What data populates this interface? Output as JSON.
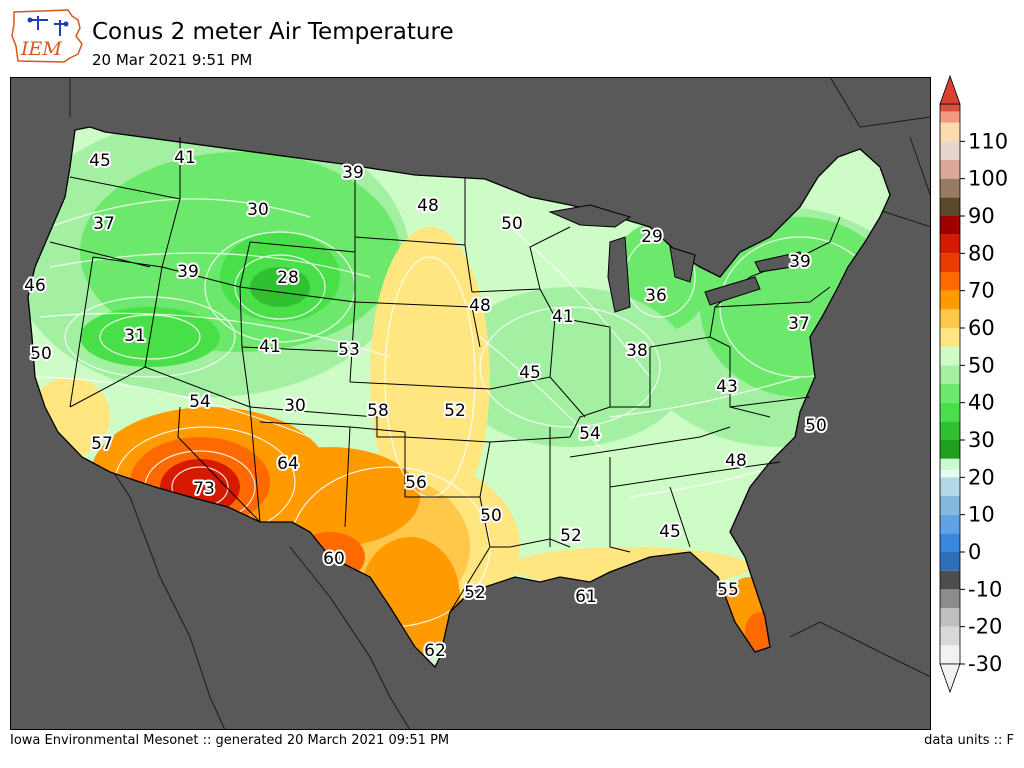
{
  "header": {
    "logo_text": "IEM",
    "title": "Conus 2 meter Air Temperature",
    "subtitle": "20 Mar 2021 9:51 PM"
  },
  "footer": {
    "left": "Iowa Environmental Mesonet :: generated 20 March 2021 09:51 PM",
    "right": "data units :: F"
  },
  "colors": {
    "background": "#595959",
    "land_palette_cool": "#1e9e1e",
    "land_palette_warm": "#e01a00"
  },
  "chart_data": {
    "type": "heatmap",
    "title": "Conus 2 meter Air Temperature",
    "subtitle": "20 Mar 2021 9:51 PM",
    "units": "F",
    "colorbar": {
      "range": [
        -30,
        120
      ],
      "tick_labels": [
        "-30",
        "-20",
        "-10",
        "0",
        "10",
        "20",
        "30",
        "40",
        "50",
        "60",
        "70",
        "80",
        "90",
        "100",
        "110"
      ],
      "ticks": [
        -30,
        -20,
        -10,
        0,
        10,
        20,
        30,
        40,
        50,
        60,
        70,
        80,
        90,
        100,
        110
      ],
      "extend": "both",
      "bins": [
        {
          "lo": -30,
          "hi": -25,
          "color": "#f2f2f2"
        },
        {
          "lo": -25,
          "hi": -20,
          "color": "#d9d9d9"
        },
        {
          "lo": -20,
          "hi": -15,
          "color": "#bfbfbf"
        },
        {
          "lo": -15,
          "hi": -10,
          "color": "#8c8c8c"
        },
        {
          "lo": -10,
          "hi": -5,
          "color": "#4d4d4d"
        },
        {
          "lo": -5,
          "hi": 0,
          "color": "#2f6eb8"
        },
        {
          "lo": 0,
          "hi": 5,
          "color": "#3a87e0"
        },
        {
          "lo": 5,
          "hi": 10,
          "color": "#5fa3e6"
        },
        {
          "lo": 10,
          "hi": 15,
          "color": "#83b9dc"
        },
        {
          "lo": 15,
          "hi": 20,
          "color": "#b3d9e6"
        },
        {
          "lo": 20,
          "hi": 22,
          "color": "#e6fbee"
        },
        {
          "lo": 22,
          "hi": 25,
          "color": "#c9fbd0"
        },
        {
          "lo": 25,
          "hi": 30,
          "color": "#1f9e1f"
        },
        {
          "lo": 30,
          "hi": 35,
          "color": "#30c030"
        },
        {
          "lo": 35,
          "hi": 40,
          "color": "#49df49"
        },
        {
          "lo": 40,
          "hi": 45,
          "color": "#6ce86c"
        },
        {
          "lo": 45,
          "hi": 50,
          "color": "#a3f0a3"
        },
        {
          "lo": 50,
          "hi": 55,
          "color": "#cefcc6"
        },
        {
          "lo": 55,
          "hi": 60,
          "color": "#ffe680"
        },
        {
          "lo": 60,
          "hi": 65,
          "color": "#ffc84a"
        },
        {
          "lo": 65,
          "hi": 70,
          "color": "#ff9a00"
        },
        {
          "lo": 70,
          "hi": 75,
          "color": "#ff6a00"
        },
        {
          "lo": 75,
          "hi": 80,
          "color": "#e93a00"
        },
        {
          "lo": 80,
          "hi": 85,
          "color": "#d61a00"
        },
        {
          "lo": 85,
          "hi": 90,
          "color": "#a00000"
        },
        {
          "lo": 90,
          "hi": 95,
          "color": "#5a4a2c"
        },
        {
          "lo": 95,
          "hi": 100,
          "color": "#9a7a62"
        },
        {
          "lo": 100,
          "hi": 105,
          "color": "#d9a89a"
        },
        {
          "lo": 105,
          "hi": 110,
          "color": "#e6d6d0"
        },
        {
          "lo": 110,
          "hi": 115,
          "color": "#fbdbb0"
        },
        {
          "lo": 115,
          "hi": 118,
          "color": "#f29a80"
        },
        {
          "lo": 118,
          "hi": 120,
          "color": "#d95040"
        }
      ],
      "under_color": "#f2f2f2",
      "over_color": "#d94030"
    },
    "station_values": [
      {
        "label": "45",
        "value": 45
      },
      {
        "label": "41",
        "value": 41
      },
      {
        "label": "39",
        "value": 39
      },
      {
        "label": "30",
        "value": 30
      },
      {
        "label": "48",
        "value": 48
      },
      {
        "label": "50",
        "value": 50
      },
      {
        "label": "29",
        "value": 29
      },
      {
        "label": "37",
        "value": 37
      },
      {
        "label": "39",
        "value": 39
      },
      {
        "label": "28",
        "value": 28
      },
      {
        "label": "46",
        "value": 46
      },
      {
        "label": "39",
        "value": 39
      },
      {
        "label": "48",
        "value": 48
      },
      {
        "label": "36",
        "value": 36
      },
      {
        "label": "41",
        "value": 41
      },
      {
        "label": "31",
        "value": 31
      },
      {
        "label": "41",
        "value": 41
      },
      {
        "label": "53",
        "value": 53
      },
      {
        "label": "37",
        "value": 37
      },
      {
        "label": "50",
        "value": 50
      },
      {
        "label": "38",
        "value": 38
      },
      {
        "label": "45",
        "value": 45
      },
      {
        "label": "43",
        "value": 43
      },
      {
        "label": "54",
        "value": 54
      },
      {
        "label": "30",
        "value": 30
      },
      {
        "label": "58",
        "value": 58
      },
      {
        "label": "52",
        "value": 52
      },
      {
        "label": "57",
        "value": 57
      },
      {
        "label": "54",
        "value": 54
      },
      {
        "label": "50",
        "value": 50
      },
      {
        "label": "64",
        "value": 64
      },
      {
        "label": "48",
        "value": 48
      },
      {
        "label": "73",
        "value": 73
      },
      {
        "label": "56",
        "value": 56
      },
      {
        "label": "50",
        "value": 50
      },
      {
        "label": "52",
        "value": 52
      },
      {
        "label": "45",
        "value": 45
      },
      {
        "label": "60",
        "value": 60
      },
      {
        "label": "52",
        "value": 52
      },
      {
        "label": "61",
        "value": 61
      },
      {
        "label": "55",
        "value": 55
      },
      {
        "label": "62",
        "value": 62
      }
    ]
  }
}
